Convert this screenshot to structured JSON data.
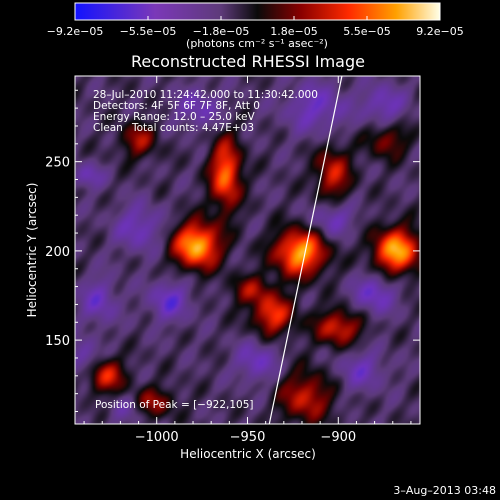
{
  "chart_data": {
    "type": "heatmap",
    "title": "Reconstructed RHESSI Image",
    "xlabel": "Heliocentric X (arcsec)",
    "ylabel": "Heliocentric Y (arcsec)",
    "xlim": [
      -1045,
      -855
    ],
    "ylim": [
      103,
      298
    ],
    "x_ticks": [
      -1000,
      -950,
      -900
    ],
    "x_tick_labels": [
      "−1000",
      "−950",
      "−900"
    ],
    "y_ticks": [
      150,
      200,
      250
    ],
    "y_tick_labels": [
      "150",
      "200",
      "250"
    ],
    "colorbar": {
      "min": -9.2e-05,
      "max": 9.2e-05,
      "tick_labels": [
        "−9.2e−05",
        "−5.5e−05",
        "−1.8e−05",
        "1.8e−05",
        "5.5e−05",
        "9.2e−05"
      ],
      "units_label": "(photons cm⁻² s⁻¹ asec⁻²)"
    },
    "annotations": {
      "time_range": "28–Jul–2010 11:24:42.000 to 11:30:42.000",
      "detectors": "Detectors: 4F 5F 6F 7F 8F, Att 0",
      "energy_range": "Energy Range: 12.0 – 25.0 keV",
      "method": "Clean",
      "total_counts": "Total counts: 4.47E+03",
      "peak_position": "Position of Peak = [−922,105]"
    },
    "peak": [
      -922,
      105
    ],
    "limb_line": [
      [
        -938,
        103
      ],
      [
        -898,
        298
      ]
    ],
    "intensity_blobs": [
      {
        "x": -978,
        "y": 203,
        "value": 1.0,
        "sx": 9,
        "sy": 9
      },
      {
        "x": -921,
        "y": 199,
        "value": 0.95,
        "sx": 10,
        "sy": 9
      },
      {
        "x": -868,
        "y": 200,
        "value": 0.95,
        "sx": 9,
        "sy": 9
      },
      {
        "x": -962,
        "y": 243,
        "value": 0.8,
        "sx": 6,
        "sy": 14
      },
      {
        "x": -903,
        "y": 243,
        "value": 0.55,
        "sx": 7,
        "sy": 11
      },
      {
        "x": -936,
        "y": 164,
        "value": 0.65,
        "sx": 8,
        "sy": 8
      },
      {
        "x": -900,
        "y": 157,
        "value": 0.6,
        "sx": 9,
        "sy": 7
      },
      {
        "x": -1028,
        "y": 130,
        "value": 0.6,
        "sx": 7,
        "sy": 7
      },
      {
        "x": -1003,
        "y": 115,
        "value": 0.45,
        "sx": 9,
        "sy": 6
      },
      {
        "x": -918,
        "y": 118,
        "value": 0.55,
        "sx": 10,
        "sy": 10
      },
      {
        "x": -1010,
        "y": 262,
        "value": 0.45,
        "sx": 7,
        "sy": 7
      },
      {
        "x": -873,
        "y": 262,
        "value": 0.4,
        "sx": 8,
        "sy": 7
      },
      {
        "x": -948,
        "y": 178,
        "value": 0.4,
        "sx": 8,
        "sy": 6
      },
      {
        "x": -1038,
        "y": 242,
        "value": -0.35,
        "sx": 6,
        "sy": 5
      },
      {
        "x": -1010,
        "y": 213,
        "value": -0.4,
        "sx": 9,
        "sy": 9
      },
      {
        "x": -993,
        "y": 172,
        "value": -0.45,
        "sx": 8,
        "sy": 8
      },
      {
        "x": -1032,
        "y": 172,
        "value": -0.4,
        "sx": 7,
        "sy": 9
      },
      {
        "x": -1040,
        "y": 140,
        "value": -0.35,
        "sx": 6,
        "sy": 7
      },
      {
        "x": -945,
        "y": 138,
        "value": -0.4,
        "sx": 8,
        "sy": 8
      },
      {
        "x": -880,
        "y": 176,
        "value": -0.45,
        "sx": 8,
        "sy": 8
      },
      {
        "x": -903,
        "y": 218,
        "value": -0.4,
        "sx": 8,
        "sy": 7
      },
      {
        "x": -912,
        "y": 280,
        "value": -0.4,
        "sx": 12,
        "sy": 10
      },
      {
        "x": -875,
        "y": 282,
        "value": -0.4,
        "sx": 8,
        "sy": 8
      },
      {
        "x": -977,
        "y": 280,
        "value": -0.35,
        "sx": 9,
        "sy": 8
      },
      {
        "x": -887,
        "y": 133,
        "value": -0.35,
        "sx": 9,
        "sy": 8
      },
      {
        "x": -1016,
        "y": 112,
        "value": -0.3,
        "sx": 7,
        "sy": 6
      }
    ]
  },
  "footer": {
    "timestamp": "3–Aug–2013 03:48"
  }
}
